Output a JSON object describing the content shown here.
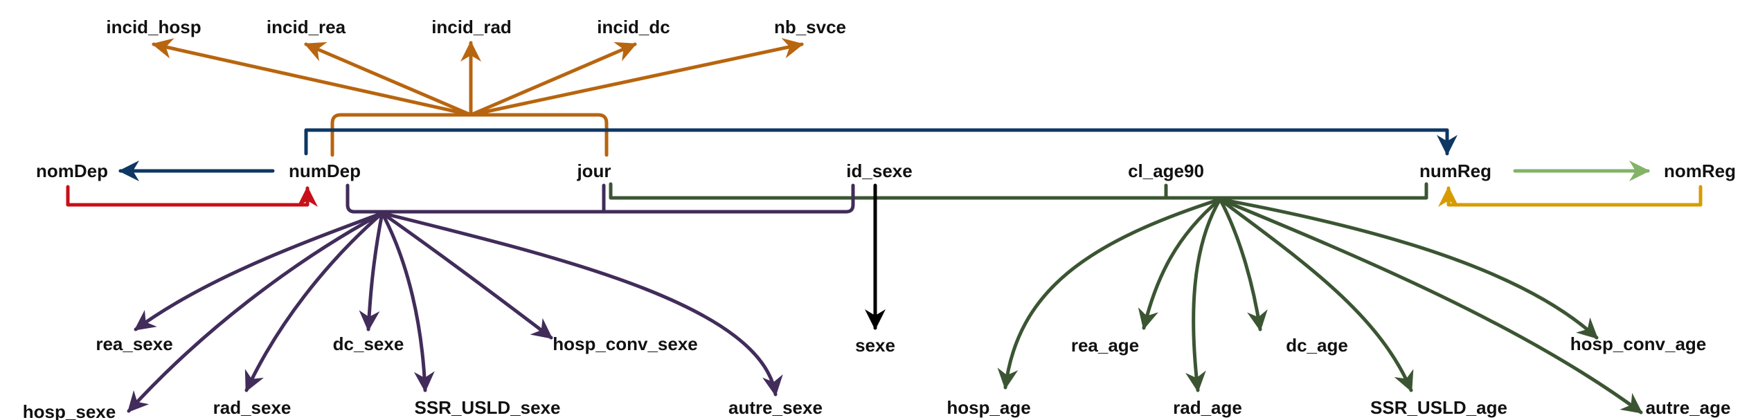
{
  "colors": {
    "brown": "#B8650F",
    "navy": "#0E3763",
    "red": "#C7101A",
    "purple": "#412C5A",
    "green": "#3B5533",
    "lightgreen": "#82B366",
    "gold": "#D79B00",
    "black": "#000000"
  },
  "labels": {
    "incid_hosp": "incid_hosp",
    "incid_rea": "incid_rea",
    "incid_rad": "incid_rad",
    "incid_dc": "incid_dc",
    "nb_svce": "nb_svce",
    "nomDep_left": "nomDep",
    "numDep": "numDep",
    "jour": "jour",
    "id_sexe": "id_sexe",
    "cl_age90": "cl_age90",
    "numReg": "numReg",
    "nomReg": "nomReg",
    "rea_sexe": "rea_sexe",
    "hosp_sexe": "hosp_sexe",
    "rad_sexe": "rad_sexe",
    "dc_sexe": "dc_sexe",
    "SSR_USLD_sexe": "SSR_USLD_sexe",
    "hosp_conv_sexe": "hosp_conv_sexe",
    "autre_sexe": "autre_sexe",
    "sexe": "sexe",
    "hosp_age": "hosp_age",
    "rea_age": "rea_age",
    "rad_age": "rad_age",
    "dc_age": "dc_age",
    "SSR_USLD_age": "SSR_USLD_age",
    "hosp_conv_age": "hosp_conv_age",
    "autre_age": "autre_age"
  }
}
